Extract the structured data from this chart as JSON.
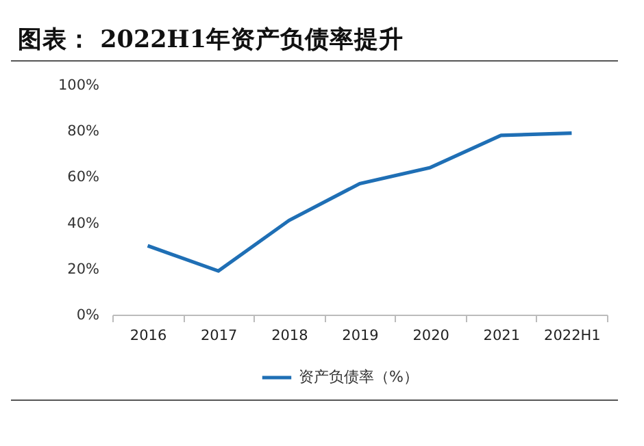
{
  "chart_data": {
    "type": "line",
    "title": "图表：  2022H1年资产负债率提升",
    "categories": [
      "2016",
      "2017",
      "2018",
      "2019",
      "2020",
      "2021",
      "2022H1"
    ],
    "series": [
      {
        "name": "资产负债率（%）",
        "color": "#1f6fb5",
        "values": [
          30,
          19,
          41,
          57,
          64,
          78,
          79
        ]
      }
    ],
    "ylim": [
      0,
      100
    ],
    "yticks": [
      {
        "value": 0,
        "label": "0%"
      },
      {
        "value": 20,
        "label": "20%"
      },
      {
        "value": 40,
        "label": "40%"
      },
      {
        "value": 60,
        "label": "60%"
      },
      {
        "value": 80,
        "label": "80%"
      },
      {
        "value": 100,
        "label": "100%"
      }
    ],
    "legend": "bottom"
  }
}
